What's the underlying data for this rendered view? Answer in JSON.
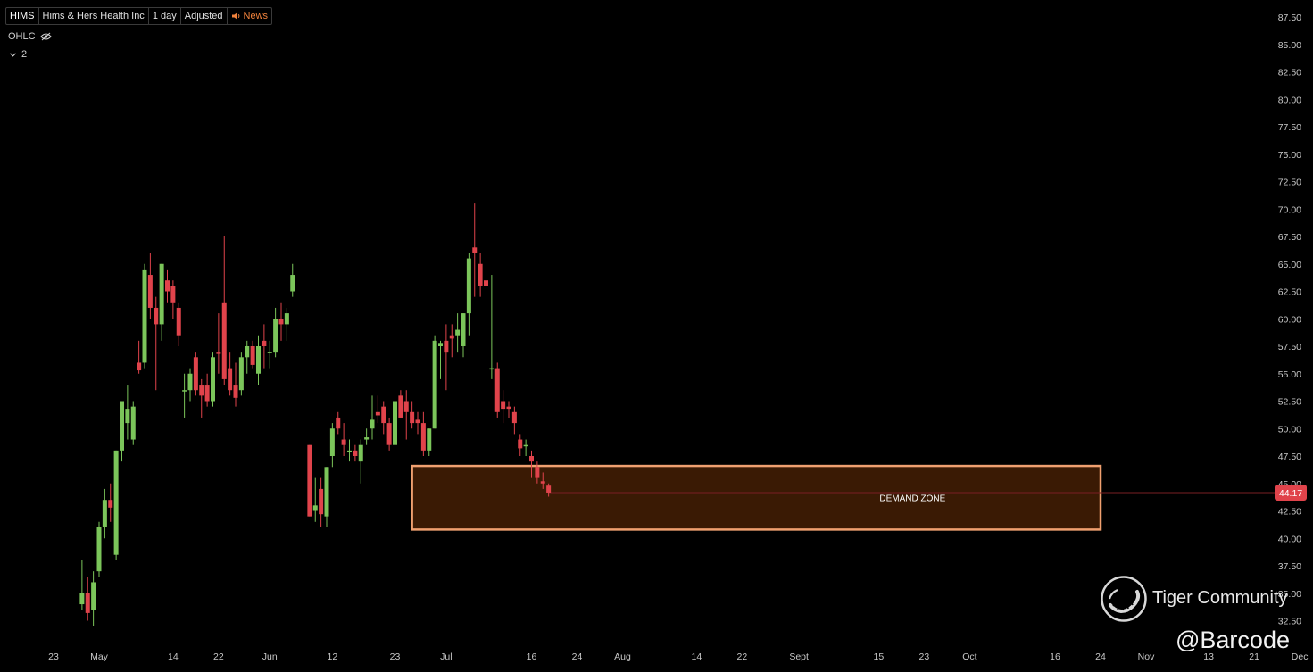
{
  "toolbar": {
    "symbol": "HIMS",
    "company": "Hims & Hers Health Inc",
    "interval": "1 day",
    "adjust": "Adjusted",
    "news": "News",
    "news_icon": "speaker-icon"
  },
  "legend": {
    "label": "OHLC",
    "eye_icon": "eye-off-icon",
    "chevron_icon": "chevron-down-icon",
    "count": "2"
  },
  "watermark": {
    "brand": "Tiger Community",
    "handle": "@Barcode"
  },
  "colors": {
    "up": "#7bc55a",
    "down": "#e0434b",
    "zone_fill": "#3a1a04",
    "zone_border": "#f0a070",
    "price_tag": "#e0434b"
  },
  "chart_data": {
    "type": "candlestick",
    "ylim": [
      31,
      89
    ],
    "y_ticks": [
      "87.50",
      "85.00",
      "82.50",
      "80.00",
      "77.50",
      "75.00",
      "72.50",
      "70.00",
      "67.50",
      "65.00",
      "62.50",
      "60.00",
      "57.50",
      "55.00",
      "52.50",
      "50.00",
      "47.50",
      "45.00",
      "42.50",
      "40.00",
      "37.50",
      "35.00",
      "32.50"
    ],
    "x_ticks": [
      {
        "label": "23",
        "day": 0
      },
      {
        "label": "May",
        "day": 8
      },
      {
        "label": "14",
        "day": 21
      },
      {
        "label": "22",
        "day": 29
      },
      {
        "label": "Jun",
        "day": 38
      },
      {
        "label": "12",
        "day": 49
      },
      {
        "label": "23",
        "day": 60
      },
      {
        "label": "Jul",
        "day": 69
      },
      {
        "label": "16",
        "day": 84
      },
      {
        "label": "24",
        "day": 92
      },
      {
        "label": "Aug",
        "day": 100
      },
      {
        "label": "14",
        "day": 113
      },
      {
        "label": "22",
        "day": 121
      },
      {
        "label": "Sept",
        "day": 131
      },
      {
        "label": "15",
        "day": 145
      },
      {
        "label": "23",
        "day": 153
      },
      {
        "label": "Oct",
        "day": 161
      },
      {
        "label": "16",
        "day": 176
      },
      {
        "label": "24",
        "day": 184
      },
      {
        "label": "Nov",
        "day": 192
      },
      {
        "label": "13",
        "day": 203
      },
      {
        "label": "21",
        "day": 211
      },
      {
        "label": "Dec",
        "day": 219
      }
    ],
    "last_price": "44.17",
    "demand_zone": {
      "label": "DEMAND ZONE",
      "low": 40.8,
      "high": 46.6,
      "from_day": 63,
      "to_day": 184
    },
    "candles": [
      [
        5,
        34,
        38,
        33.5,
        35
      ],
      [
        6,
        35,
        36.5,
        32.5,
        33.2
      ],
      [
        7,
        33.5,
        37,
        32,
        36
      ],
      [
        8,
        37,
        41.5,
        36.5,
        41
      ],
      [
        9,
        41,
        44.5,
        40,
        43.5
      ],
      [
        10,
        43.5,
        45,
        41.5,
        42.8
      ],
      [
        11,
        38.5,
        48,
        38,
        48
      ],
      [
        12,
        48,
        52.5,
        47,
        52.5
      ],
      [
        13,
        50.5,
        54,
        49,
        51.8
      ],
      [
        14,
        49,
        52.5,
        48.5,
        52
      ],
      [
        15,
        56,
        58,
        55,
        55.3
      ],
      [
        16,
        56,
        65,
        55.5,
        64.5
      ],
      [
        17,
        64,
        66,
        60,
        61
      ],
      [
        18,
        61,
        62,
        53.5,
        59.5
      ],
      [
        19,
        59.5,
        65,
        58,
        65
      ],
      [
        20,
        63.5,
        64.5,
        61.5,
        62.5
      ],
      [
        21,
        63,
        63.5,
        60,
        61.5
      ],
      [
        22,
        61,
        61.5,
        57.5,
        58.5
      ],
      [
        23,
        53.5,
        55,
        51,
        53.5
      ],
      [
        24,
        53.5,
        55.5,
        52.5,
        55
      ],
      [
        25,
        56.5,
        57,
        53,
        53.5
      ],
      [
        26,
        54,
        54.5,
        51,
        53
      ],
      [
        27,
        54,
        55,
        52,
        52.5
      ],
      [
        28,
        52.5,
        57,
        52,
        56.5
      ],
      [
        29,
        57,
        60.5,
        55,
        56.8
      ],
      [
        30,
        61.5,
        67.5,
        54,
        54.5
      ],
      [
        31,
        55.5,
        57,
        53,
        53.5
      ],
      [
        32,
        54,
        56,
        52,
        52.8
      ],
      [
        33,
        53.5,
        57,
        53,
        56.5
      ],
      [
        34,
        56.5,
        58,
        55,
        57.5
      ],
      [
        35,
        57.5,
        58,
        55.5,
        55.8
      ],
      [
        36,
        55,
        58.5,
        54,
        57.5
      ],
      [
        37,
        58,
        59.5,
        55.5,
        57.5
      ],
      [
        38,
        57,
        58,
        55.5,
        57
      ],
      [
        39,
        57,
        61,
        56.5,
        60
      ],
      [
        40,
        60,
        61.5,
        58,
        59.5
      ],
      [
        41,
        59.5,
        61,
        58,
        60.5
      ],
      [
        42,
        62.5,
        65,
        62,
        64
      ],
      [
        45,
        48.5,
        48.5,
        42,
        42
      ],
      [
        46,
        42.5,
        45.5,
        41.5,
        43
      ],
      [
        47,
        44.5,
        45.5,
        41,
        42.2
      ],
      [
        48,
        42,
        46.5,
        41,
        46.5
      ],
      [
        49,
        47.5,
        50.5,
        46.5,
        50
      ],
      [
        50,
        51,
        51.5,
        49.5,
        50
      ],
      [
        51,
        49,
        50.5,
        47.5,
        48.5
      ],
      [
        52,
        48,
        49,
        47,
        48
      ],
      [
        53,
        48,
        48.5,
        47,
        47.5
      ],
      [
        54,
        47,
        49,
        45,
        48.5
      ],
      [
        55,
        49,
        50,
        48.5,
        49.2
      ],
      [
        56,
        50,
        53,
        49,
        50.8
      ],
      [
        57,
        51.5,
        53,
        50.5,
        51.2
      ],
      [
        58,
        52,
        52.5,
        49.5,
        50.5
      ],
      [
        59,
        50.5,
        51,
        48,
        48.5
      ],
      [
        60,
        48.5,
        52.5,
        47.5,
        52.5
      ],
      [
        61,
        53,
        53.5,
        51,
        51
      ],
      [
        62,
        52.5,
        53.5,
        49,
        51.5
      ],
      [
        63,
        51.5,
        52.5,
        50,
        50.5
      ],
      [
        64,
        50.8,
        51.5,
        49.5,
        50.5
      ],
      [
        65,
        50.5,
        51.5,
        47.5,
        48
      ],
      [
        66,
        48,
        50,
        47.5,
        50
      ],
      [
        67,
        50,
        58.5,
        50,
        58
      ],
      [
        68,
        57.5,
        58,
        54.5,
        57.8
      ],
      [
        69,
        58,
        59.5,
        53.5,
        57
      ],
      [
        70,
        58.5,
        59.5,
        56.5,
        58.2
      ],
      [
        71,
        58.5,
        60.5,
        57,
        59
      ],
      [
        72,
        57.5,
        60.5,
        56.5,
        60.5
      ],
      [
        73,
        60.5,
        66,
        58.5,
        65.5
      ],
      [
        74,
        66.5,
        70.5,
        62,
        66
      ],
      [
        75,
        65,
        66,
        62,
        63
      ],
      [
        76,
        63.5,
        64.5,
        61.5,
        63
      ],
      [
        77,
        55.5,
        64,
        54.5,
        55.5
      ],
      [
        78,
        55.5,
        56,
        51,
        51.5
      ],
      [
        79,
        52.5,
        53.5,
        50.5,
        51.8
      ],
      [
        80,
        52,
        52.5,
        51,
        51.8
      ],
      [
        81,
        51.5,
        52,
        49.5,
        50.5
      ],
      [
        82,
        49,
        49.5,
        47.5,
        48.2
      ],
      [
        83,
        48.5,
        49,
        47.5,
        48.5
      ],
      [
        84,
        47.5,
        48,
        45.5,
        47
      ],
      [
        85,
        46.5,
        47,
        45,
        45.5
      ],
      [
        86,
        45.2,
        46,
        44.5,
        45
      ],
      [
        87,
        44.8,
        45,
        43.8,
        44.17
      ]
    ]
  }
}
